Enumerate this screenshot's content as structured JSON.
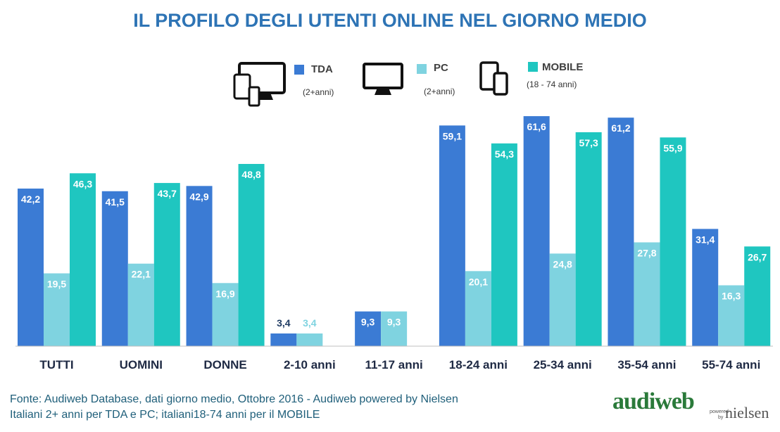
{
  "colors": {
    "title": "#2e74b5",
    "tda": "#3b7bd4",
    "pc": "#7fd3e0",
    "mobile": "#1fc6c0",
    "axis": "#bfbfbf",
    "category_label": "#1f2a44"
  },
  "legend": {
    "tda": {
      "label": "TDA",
      "note": "(2+anni)",
      "icon": "multi-device-icon"
    },
    "pc": {
      "label": "PC",
      "note": "(2+anni)",
      "icon": "monitor-icon"
    },
    "mobile": {
      "label": "MOBILE",
      "note": "(18 - 74 anni)",
      "icon": "mobile-devices-icon"
    }
  },
  "source": {
    "line1": "Fonte: Audiweb Database, dati giorno medio, Ottobre 2016 - Audiweb powered by Nielsen",
    "line2": "Italiani 2+ anni per TDA e PC; italiani18-74 anni per il MOBILE"
  },
  "brand": {
    "name": "audiweb",
    "powered": "powered",
    "by": "by",
    "partner": "nielsen"
  },
  "chart_data": {
    "type": "bar",
    "title": "IL PROFILO DEGLI UTENTI ONLINE NEL GIORNO MEDIO",
    "xlabel": "",
    "ylabel": "",
    "ylim": [
      0,
      65
    ],
    "grid": false,
    "legend_position": "top",
    "categories": [
      "TUTTI",
      "UOMINI",
      "DONNE",
      "2-10 anni",
      "11-17 anni",
      "18-24 anni",
      "25-34 anni",
      "35-54 anni",
      "55-74 anni"
    ],
    "series": [
      {
        "name": "TDA",
        "values": [
          42.2,
          41.5,
          42.9,
          3.4,
          9.3,
          59.1,
          61.6,
          61.2,
          31.4
        ],
        "labels": [
          "42,2",
          "41,5",
          "42,9",
          "3,4",
          "9,3",
          "59,1",
          "61,6",
          "61,2",
          "31,4"
        ]
      },
      {
        "name": "PC",
        "values": [
          19.5,
          22.1,
          16.9,
          3.4,
          9.3,
          20.1,
          24.8,
          27.8,
          16.3
        ],
        "labels": [
          "19,5",
          "22,1",
          "16,9",
          "3,4",
          "9,3",
          "20,1",
          "24,8",
          "27,8",
          "16,3"
        ]
      },
      {
        "name": "MOBILE",
        "values": [
          46.3,
          43.7,
          48.8,
          null,
          null,
          54.3,
          57.3,
          55.9,
          26.7
        ],
        "labels": [
          "46,3",
          "43,7",
          "48,8",
          "",
          "",
          "54,3",
          "57,3",
          "55,9",
          "26,7"
        ]
      }
    ]
  }
}
